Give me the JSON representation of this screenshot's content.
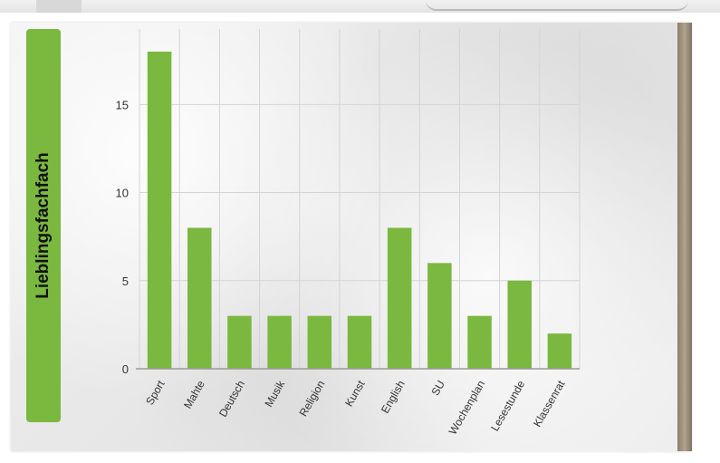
{
  "chart_data": {
    "type": "bar",
    "title": "Lieblingsfachfach",
    "categories": [
      "Sport",
      "Mahte",
      "Deutsch",
      "Musik",
      "Religion",
      "Kunst",
      "English",
      "SU",
      "Wochenplan",
      "Lesestunde",
      "Klassenrat"
    ],
    "values": [
      18,
      8,
      3,
      3,
      3,
      3,
      8,
      6,
      3,
      5,
      2
    ],
    "yticks": [
      "0",
      "5",
      "10",
      "15"
    ],
    "ylim": [
      0,
      19
    ],
    "grid": true,
    "bar_color": "#7ab840",
    "xlabel": "",
    "ylabel": ""
  }
}
